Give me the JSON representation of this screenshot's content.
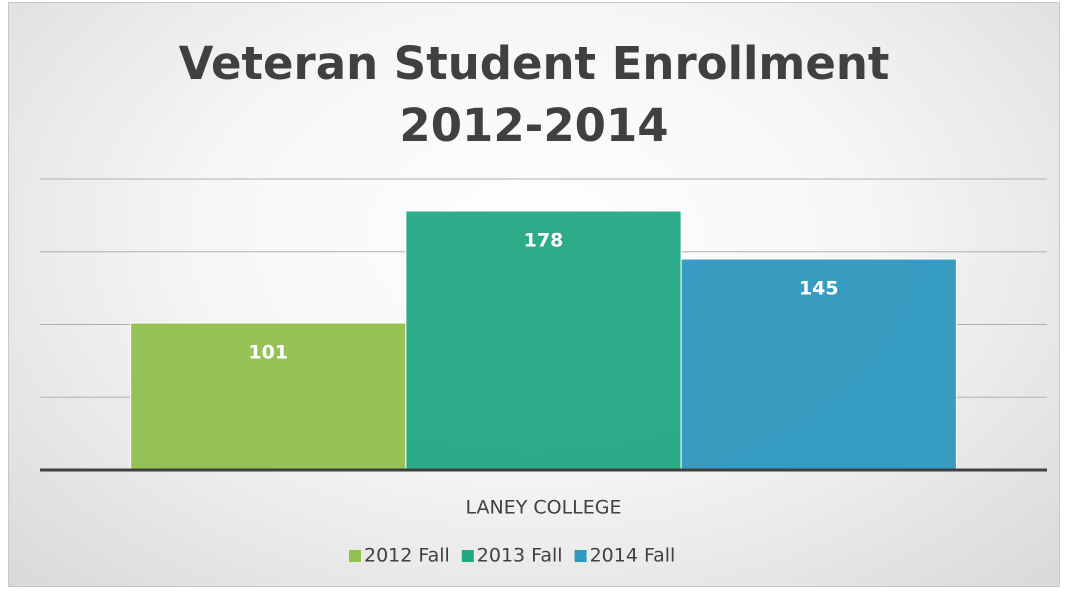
{
  "chart_data": {
    "type": "bar",
    "title": "Veteran Student Enrollment 2012-2014",
    "categories": [
      "LANEY COLLEGE"
    ],
    "series": [
      {
        "name": "2012 Fall",
        "color": "#92c04e",
        "values": [
          101
        ]
      },
      {
        "name": "2013 Fall",
        "color": "#22a884",
        "values": [
          178
        ]
      },
      {
        "name": "2014 Fall",
        "color": "#2e98bf",
        "values": [
          145
        ]
      }
    ],
    "ylim": [
      0,
      200
    ],
    "yticks": [
      0,
      50,
      100,
      150,
      200
    ],
    "grid": true,
    "legend": "bottom"
  }
}
